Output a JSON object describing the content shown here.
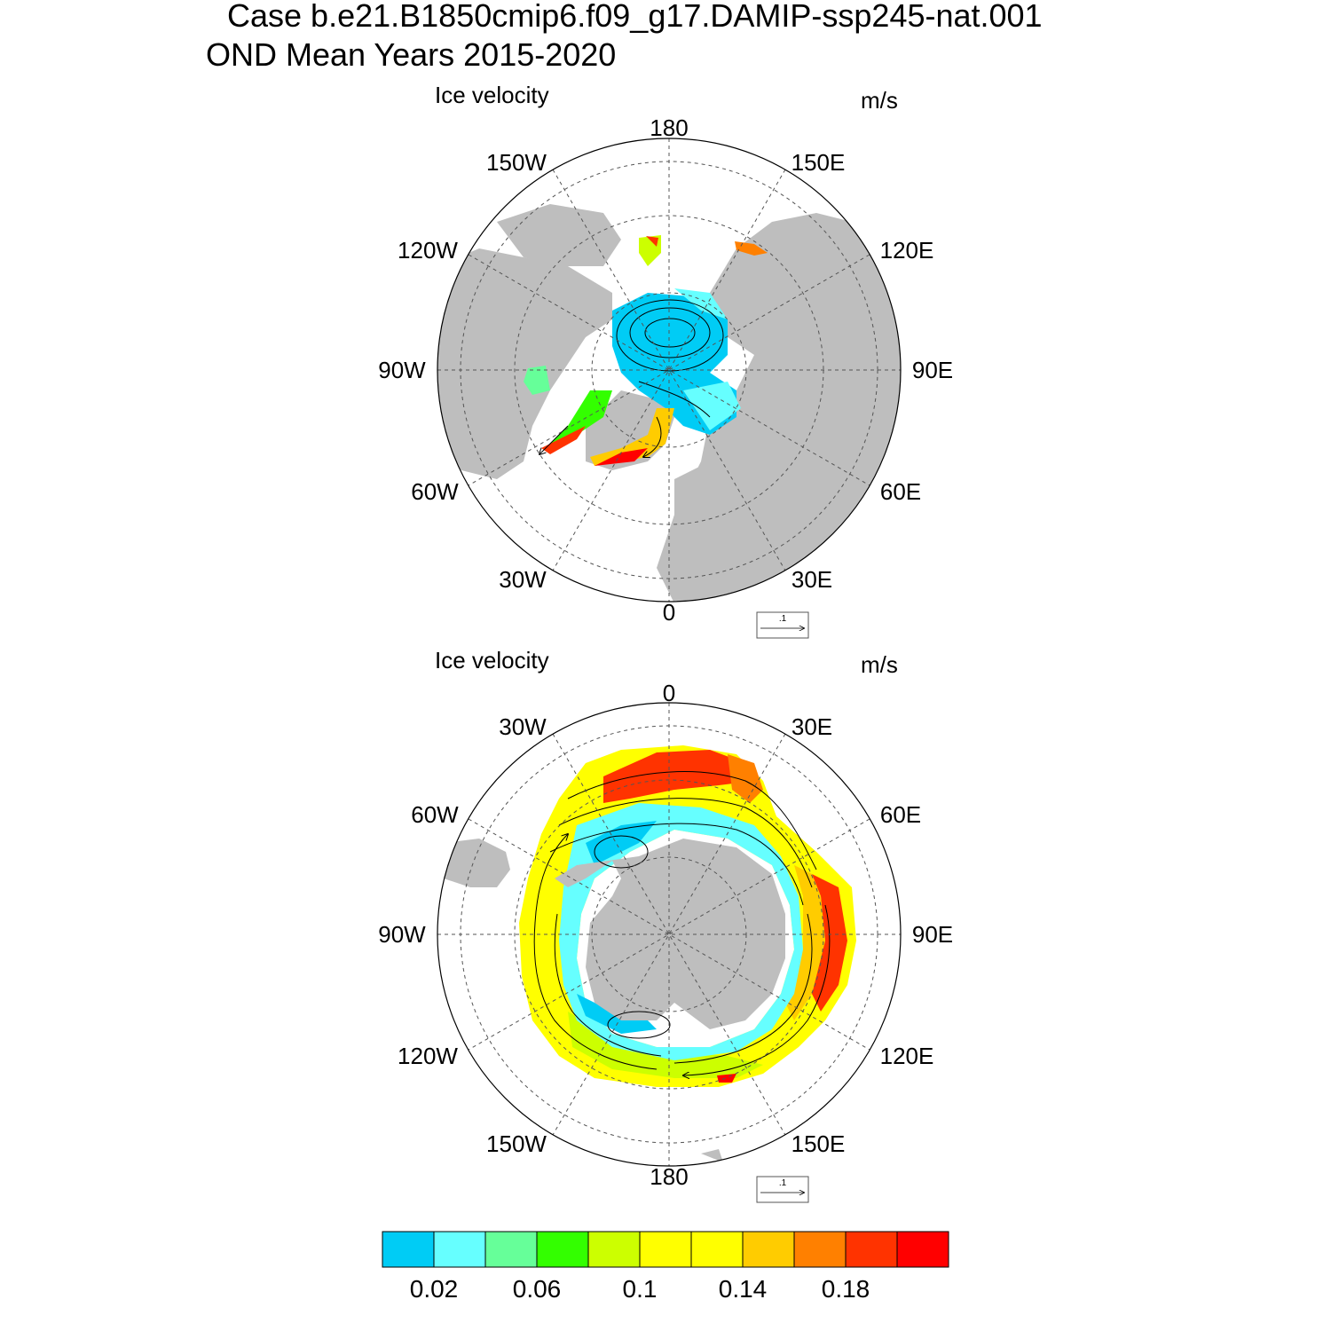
{
  "title": {
    "line1": "Case b.e21.B1850cmip6.f09_g17.DAMIP-ssp245-nat.001",
    "line2": "OND Mean   Years 2015-2020"
  },
  "panels": [
    {
      "id": "arctic",
      "left_title": "Ice velocity",
      "units": "m/s",
      "lon_labels": {
        "top": "180",
        "upper_left": "150W",
        "upper_right": "150E",
        "mid_upper_left": "120W",
        "mid_upper_right": "120E",
        "left": "90W",
        "right": "90E",
        "mid_lower_left": "60W",
        "mid_lower_right": "60E",
        "lower_left": "30W",
        "lower_right": "30E",
        "bottom": "0"
      },
      "ref_vector_label": ".1"
    },
    {
      "id": "antarctic",
      "left_title": "Ice velocity",
      "units": "m/s",
      "lon_labels": {
        "top": "0",
        "upper_left": "30W",
        "upper_right": "30E",
        "mid_upper_left": "60W",
        "mid_upper_right": "60E",
        "left": "90W",
        "right": "90E",
        "mid_lower_left": "120W",
        "mid_lower_right": "120E",
        "lower_left": "150W",
        "lower_right": "150E",
        "bottom": "180"
      },
      "ref_vector_label": ".1"
    }
  ],
  "colorbar": {
    "colors": [
      "#00ccf5",
      "#66ffff",
      "#66ff99",
      "#33ff00",
      "#ccff00",
      "#ffff00",
      "#ffff00",
      "#ffcc00",
      "#ff8000",
      "#ff3300",
      "#ff0000"
    ],
    "labels": [
      "0.02",
      "0.06",
      "0.1",
      "0.14",
      "0.18"
    ]
  },
  "palette": {
    "land": "#bebebe",
    "grid": "#555555"
  }
}
